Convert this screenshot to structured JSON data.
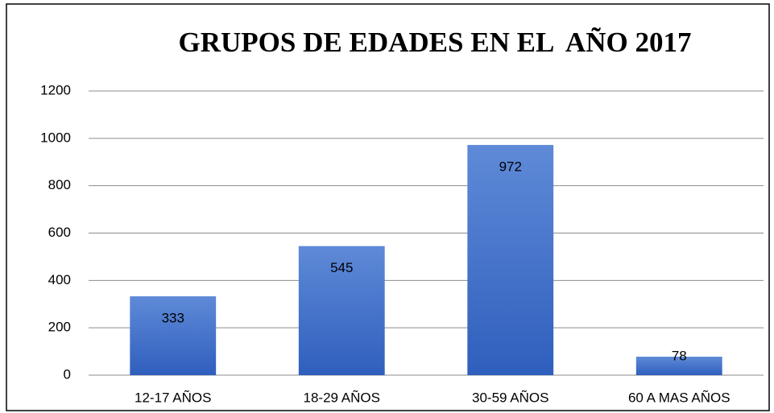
{
  "chart_data": {
    "type": "bar",
    "title": "GRUPOS DE EDADES EN EL  AÑO 2017",
    "categories": [
      "12-17 AÑOS",
      "18-29 AÑOS",
      "30-59 AÑOS",
      "60 A MAS AÑOS"
    ],
    "values": [
      333,
      545,
      972,
      78
    ],
    "color": "#4472c4",
    "ylim": [
      0,
      1200
    ],
    "yticks": [
      0,
      200,
      400,
      600,
      800,
      1000,
      1200
    ],
    "grid": true
  }
}
